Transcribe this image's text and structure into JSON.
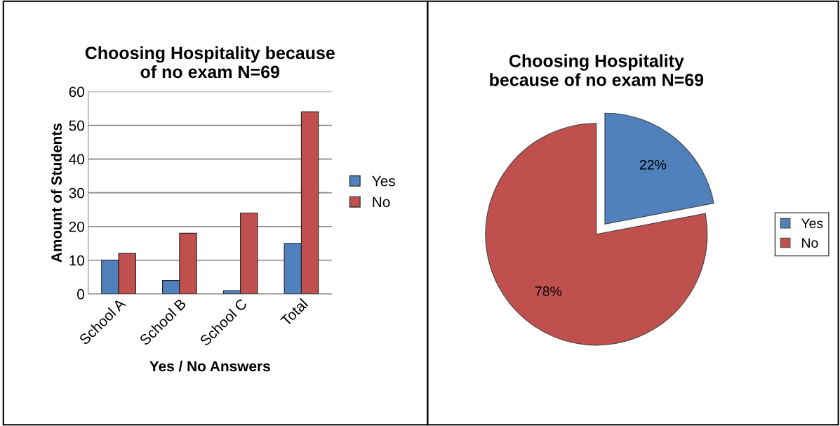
{
  "chart_data": [
    {
      "type": "bar",
      "title": "Choosing Hospitality because\nof no exam N=69",
      "xlabel": "Yes / No Answers",
      "ylabel": "Amount of Students",
      "categories": [
        "School A",
        "School B",
        "School C",
        "Total"
      ],
      "series": [
        {
          "name": "Yes",
          "color": "#4f81bd",
          "values": [
            10,
            4,
            1,
            15
          ]
        },
        {
          "name": "No",
          "color": "#c0504d",
          "values": [
            12,
            18,
            24,
            54
          ]
        }
      ],
      "ylim": [
        0,
        60
      ],
      "yticks": [
        0,
        10,
        20,
        30,
        40,
        50,
        60
      ],
      "grid": "y",
      "legend": "right"
    },
    {
      "type": "pie",
      "title": "Choosing Hospitality\nbecause of no exam N=69",
      "categories": [
        "Yes",
        "No"
      ],
      "values": [
        22,
        78
      ],
      "colors": [
        "#4f81bd",
        "#c0504d"
      ],
      "value_labels": [
        "22%",
        "78%"
      ],
      "legend": "right"
    }
  ]
}
